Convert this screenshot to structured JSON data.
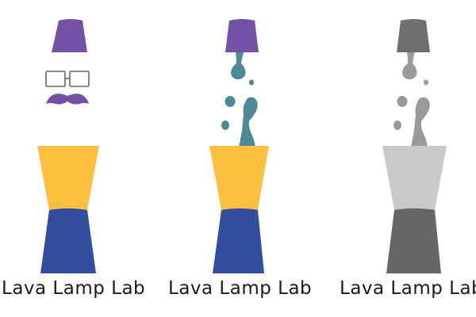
{
  "logos": [
    {
      "variant": "face",
      "caption": "Lava Lamp Lab",
      "colors": {
        "cap": "#7451a6",
        "glasses": "#666666",
        "mustache": "#7451a6",
        "top": "#fdbf3f",
        "base": "#324f9f"
      }
    },
    {
      "variant": "lava",
      "caption": "Lava Lamp Lab",
      "colors": {
        "cap": "#7451a6",
        "lava": "#4c8a95",
        "top": "#fdbf3f",
        "base": "#324f9f"
      }
    },
    {
      "variant": "grayscale",
      "caption": "Lava Lamp Lab",
      "colors": {
        "cap": "#6f6f6f",
        "lava": "#9a9a9a",
        "top": "#c9c9c9",
        "base": "#666666"
      }
    }
  ]
}
